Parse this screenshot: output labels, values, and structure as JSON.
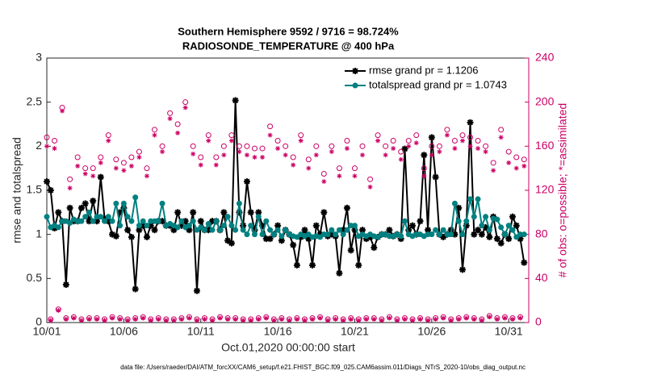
{
  "chart_data": {
    "type": "line",
    "title": "Southern Hemisphere 9592 / 9716 = 98.724%",
    "subtitle": "RADIOSONDE_TEMPERATURE @ 400 hPa",
    "xlabel": "Oct.01,2020 00:00:00 start",
    "ylabel": "rmse and totalspread",
    "y2label": "# of obs: o=possible; *=assimilated",
    "footnote": "data file: /Users/raeder/DAI/ATM_forcXX/CAM6_setup/f.e21.FHIST_BGC.f09_025.CAM6assim.011/Diags_NTrS_2020-10/obs_diag_output.nc",
    "xlim": [
      0,
      31.3
    ],
    "xticks": [
      {
        "value": 0,
        "label": "10/01"
      },
      {
        "value": 5,
        "label": "10/06"
      },
      {
        "value": 10,
        "label": "10/11"
      },
      {
        "value": 15,
        "label": "10/16"
      },
      {
        "value": 20,
        "label": "10/21"
      },
      {
        "value": 25,
        "label": "10/26"
      },
      {
        "value": 30,
        "label": "10/31"
      }
    ],
    "ylim": [
      0,
      3
    ],
    "yticks": [
      0,
      0.5,
      1,
      1.5,
      2,
      2.5,
      3
    ],
    "y2lim": [
      0,
      240
    ],
    "y2ticks": [
      0,
      40,
      80,
      120,
      160,
      200,
      240
    ],
    "y2color": "#cc0066",
    "grid": false,
    "legend": "upper right",
    "x": [
      0,
      0.25,
      0.5,
      0.75,
      1,
      1.25,
      1.5,
      1.75,
      2,
      2.25,
      2.5,
      2.75,
      3,
      3.25,
      3.5,
      3.75,
      4,
      4.25,
      4.5,
      4.75,
      5,
      5.25,
      5.5,
      5.75,
      6,
      6.25,
      6.5,
      6.75,
      7,
      7.25,
      7.5,
      7.75,
      8,
      8.25,
      8.5,
      8.75,
      9,
      9.25,
      9.5,
      9.75,
      10,
      10.25,
      10.5,
      10.75,
      11,
      11.25,
      11.5,
      11.75,
      12,
      12.25,
      12.5,
      12.75,
      13,
      13.25,
      13.5,
      13.75,
      14,
      14.25,
      14.5,
      14.75,
      15,
      15.25,
      15.5,
      15.75,
      16,
      16.25,
      16.5,
      16.75,
      17,
      17.25,
      17.5,
      17.75,
      18,
      18.25,
      18.5,
      18.75,
      19,
      19.25,
      19.5,
      19.75,
      20,
      20.25,
      20.5,
      20.75,
      21,
      21.25,
      21.5,
      21.75,
      22,
      22.25,
      22.5,
      22.75,
      23,
      23.25,
      23.5,
      23.75,
      24,
      24.25,
      24.5,
      24.75,
      25,
      25.25,
      25.5,
      25.75,
      26,
      26.25,
      26.5,
      26.75,
      27,
      27.25,
      27.5,
      27.75,
      28,
      28.25,
      28.5,
      28.75,
      29,
      29.25,
      29.5,
      29.75,
      30,
      30.25,
      30.5,
      30.75,
      31
    ],
    "series": [
      {
        "name": "rmse grand pr = 1.1206",
        "color": "#000000",
        "marker": "asterisk",
        "line": true,
        "values": [
          1.6,
          1.5,
          1.07,
          1.25,
          1.15,
          0.43,
          1.3,
          1.15,
          1.15,
          1.3,
          1.35,
          1.15,
          1.38,
          1.15,
          1.65,
          1.18,
          1.15,
          1.0,
          0.98,
          1.25,
          1.3,
          1.05,
          0.97,
          0.38,
          1.05,
          1.1,
          0.97,
          1.1,
          1.05,
          1.15,
          1.15,
          1.1,
          1.1,
          1.05,
          1.25,
          1.1,
          1.15,
          1.05,
          1.25,
          0.36,
          1.15,
          1.05,
          1.05,
          1.15,
          1.15,
          1.05,
          1.25,
          0.93,
          0.9,
          2.52,
          1.25,
          1.1,
          1.6,
          1.25,
          1.05,
          1.25,
          1.1,
          0.95,
          0.95,
          1.0,
          1.1,
          0.93,
          1.05,
          1.0,
          0.88,
          0.65,
          0.97,
          1.05,
          0.95,
          0.65,
          1.1,
          1.0,
          1.25,
          0.98,
          1.0,
          0.98,
          0.56,
          1.05,
          1.3,
          0.82,
          1.05,
          0.65,
          1.05,
          0.95,
          0.97,
          0.85,
          0.97,
          1.0,
          1.0,
          1.05,
          0.98,
          1.0,
          0.95,
          1.97,
          1.05,
          1.1,
          1.0,
          1.15,
          1.9,
          1.05,
          2.1,
          1.65,
          1.0,
          0.97,
          1.0,
          1.05,
          1.0,
          1.3,
          0.6,
          1.1,
          2.27,
          1.0,
          1.05,
          1.0,
          1.08,
          0.97,
          1.2,
          0.95,
          0.9,
          1.0,
          0.95,
          1.2,
          1.1,
          0.95,
          0.68
        ]
      },
      {
        "name": "totalspread grand pr = 1.0743",
        "color": "#008080",
        "marker": "dot",
        "line": true,
        "values": [
          1.2,
          1.08,
          1.1,
          1.08,
          1.15,
          1.15,
          1.13,
          1.17,
          1.15,
          1.15,
          1.2,
          1.25,
          1.15,
          1.2,
          1.2,
          1.15,
          1.2,
          1.15,
          1.35,
          1.1,
          1.35,
          1.2,
          1.15,
          1.42,
          1.1,
          1.15,
          1.1,
          1.15,
          1.15,
          1.15,
          1.35,
          1.1,
          1.12,
          1.1,
          1.08,
          1.15,
          1.08,
          1.1,
          1.15,
          1.05,
          1.08,
          1.05,
          1.12,
          1.05,
          1.15,
          1.05,
          1.1,
          1.2,
          1.1,
          1.05,
          1.35,
          1.05,
          1.0,
          1.1,
          1.0,
          1.2,
          1.0,
          1.15,
          1.05,
          1.0,
          1.05,
          0.98,
          1.05,
          1.0,
          0.98,
          0.97,
          1.0,
          0.98,
          1.0,
          0.97,
          0.98,
          0.97,
          1.0,
          1.0,
          1.05,
          1.0,
          1.05,
          1.0,
          1.05,
          1.1,
          1.1,
          0.98,
          1.0,
          0.98,
          1.0,
          0.98,
          0.97,
          1.0,
          1.0,
          0.98,
          0.98,
          1.0,
          0.98,
          1.15,
          1.0,
          0.98,
          1.0,
          1.0,
          0.98,
          1.0,
          1.0,
          1.05,
          1.0,
          1.05,
          1.0,
          1.0,
          1.35,
          1.15,
          1.0,
          1.15,
          1.4,
          1.2,
          1.4,
          1.1,
          1.2,
          1.05,
          1.18,
          1.17,
          1.08,
          1.0,
          1.1,
          1.05,
          0.97,
          1.0,
          1.0
        ]
      },
      {
        "color": "#cc0066",
        "marker": "open-circle",
        "line": false,
        "axis": "y2",
        "values": [
          168,
          3,
          165,
          12,
          195,
          4,
          130,
          5,
          150,
          3,
          140,
          4,
          140,
          4,
          150,
          3,
          170,
          5,
          148,
          4,
          145,
          3,
          150,
          4,
          155,
          5,
          140,
          3,
          175,
          4,
          160,
          3,
          190,
          3,
          180,
          4,
          200,
          5,
          160,
          3,
          150,
          4,
          170,
          3,
          150,
          5,
          160,
          4,
          170,
          4,
          160,
          3,
          160,
          3,
          158,
          4,
          158,
          5,
          178,
          3,
          165,
          4,
          160,
          3,
          150,
          4,
          170,
          3,
          148,
          4,
          160,
          5,
          135,
          3,
          160,
          4,
          140,
          3,
          165,
          4,
          140,
          3,
          160,
          4,
          130,
          4,
          170,
          3,
          160,
          5,
          165,
          3,
          155,
          4,
          165,
          3,
          170,
          4,
          140,
          3,
          160,
          4,
          160,
          5,
          175,
          3,
          165,
          4,
          170,
          5,
          168,
          4,
          165,
          3,
          160,
          6,
          145,
          4,
          175,
          5,
          155,
          4,
          150,
          5,
          148
        ]
      },
      {
        "color": "#cc0066",
        "marker": "asterisk",
        "line": false,
        "axis": "y2",
        "values": [
          160,
          2,
          158,
          11,
          192,
          3,
          122,
          4,
          142,
          2,
          135,
          3,
          133,
          3,
          145,
          2,
          165,
          4,
          140,
          3,
          138,
          2,
          142,
          3,
          150,
          4,
          133,
          2,
          170,
          3,
          155,
          2,
          185,
          2,
          172,
          3,
          195,
          4,
          153,
          2,
          143,
          3,
          165,
          2,
          143,
          4,
          152,
          3,
          165,
          3,
          155,
          2,
          152,
          2,
          150,
          3,
          150,
          4,
          170,
          2,
          158,
          3,
          152,
          2,
          143,
          3,
          165,
          2,
          140,
          3,
          152,
          4,
          128,
          2,
          155,
          3,
          133,
          2,
          158,
          3,
          133,
          2,
          152,
          3,
          123,
          3,
          165,
          2,
          152,
          4,
          158,
          2,
          148,
          3,
          160,
          2,
          163,
          3,
          133,
          2,
          152,
          3,
          155,
          4,
          170,
          2,
          158,
          3,
          165,
          4,
          160,
          3,
          158,
          2,
          155,
          5,
          138,
          3,
          168,
          4,
          145,
          3,
          140,
          4,
          142
        ]
      }
    ]
  }
}
